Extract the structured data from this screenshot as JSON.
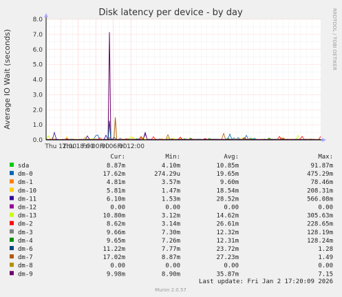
{
  "chart_data": {
    "type": "line",
    "title": "Disk latency per device - by day",
    "ylabel": "Average IO Wait (seconds)",
    "xlabel": "",
    "ylim": [
      0,
      8
    ],
    "yticks": [
      "0.0",
      "1.0",
      "2.0",
      "3.0",
      "4.0",
      "5.0",
      "6.0",
      "7.0",
      "8.0"
    ],
    "xticks": [
      "Thu 12:00",
      "Thu 18:00",
      "Fri 00:00",
      "Fri 06:00",
      "Fri 12:00"
    ],
    "grid": true,
    "side_label": "RRDTOOL / TOBI OETIKER",
    "colors": {
      "background": "#f0f0f0",
      "plot_background": "#ffffff",
      "grid": "#ffaaaa",
      "axis": "#000000"
    },
    "series_peaks": [
      {
        "name": "dm-9",
        "time": "Fri 04:40",
        "value": 7.15
      },
      {
        "name": "dm-7",
        "time": "Fri 06:40",
        "value": 1.49
      },
      {
        "name": "dm-6",
        "time": "Fri 04:40",
        "value": 1.28
      }
    ]
  },
  "legend": {
    "headers": [
      "Cur:",
      "Min:",
      "Avg:",
      "Max:"
    ],
    "rows": [
      {
        "name": "sda",
        "color": "#00cc00",
        "cur": "8.87m",
        "min": "4.10m",
        "avg": "10.85m",
        "max": "91.87m"
      },
      {
        "name": "dm-0",
        "color": "#0066b3",
        "cur": "17.62m",
        "min": "274.29u",
        "avg": "19.65m",
        "max": "475.29m"
      },
      {
        "name": "dm-1",
        "color": "#ff8000",
        "cur": "4.81m",
        "min": "3.57m",
        "avg": "9.60m",
        "max": "78.46m"
      },
      {
        "name": "dm-10",
        "color": "#ffcc00",
        "cur": "5.81m",
        "min": "1.47m",
        "avg": "18.54m",
        "max": "208.31m"
      },
      {
        "name": "dm-11",
        "color": "#330099",
        "cur": "6.10m",
        "min": "1.53m",
        "avg": "28.52m",
        "max": "566.08m"
      },
      {
        "name": "dm-12",
        "color": "#990099",
        "cur": "0.00",
        "min": "0.00",
        "avg": "0.00",
        "max": "0.00"
      },
      {
        "name": "dm-13",
        "color": "#ccff00",
        "cur": "10.80m",
        "min": "3.12m",
        "avg": "14.62m",
        "max": "305.63m"
      },
      {
        "name": "dm-2",
        "color": "#ff0000",
        "cur": "8.62m",
        "min": "3.14m",
        "avg": "26.61m",
        "max": "228.65m"
      },
      {
        "name": "dm-3",
        "color": "#808080",
        "cur": "9.66m",
        "min": "7.30m",
        "avg": "12.32m",
        "max": "128.19m"
      },
      {
        "name": "dm-4",
        "color": "#008f00",
        "cur": "9.65m",
        "min": "7.26m",
        "avg": "12.31m",
        "max": "128.24m"
      },
      {
        "name": "dm-6",
        "color": "#00487d",
        "cur": "11.22m",
        "min": "7.77m",
        "avg": "23.72m",
        "max": "1.28"
      },
      {
        "name": "dm-7",
        "color": "#b35a00",
        "cur": "17.02m",
        "min": "8.87m",
        "avg": "27.23m",
        "max": "1.49"
      },
      {
        "name": "dm-8",
        "color": "#b38f00",
        "cur": "0.00",
        "min": "0.00",
        "avg": "0.00",
        "max": "0.00"
      },
      {
        "name": "dm-9",
        "color": "#6b006b",
        "cur": "9.98m",
        "min": "8.90m",
        "avg": "35.87m",
        "max": "7.15"
      }
    ]
  },
  "last_update": "Last update: Fri Jan  2 17:20:09 2026",
  "munin_version": "Munin 2.0.57"
}
